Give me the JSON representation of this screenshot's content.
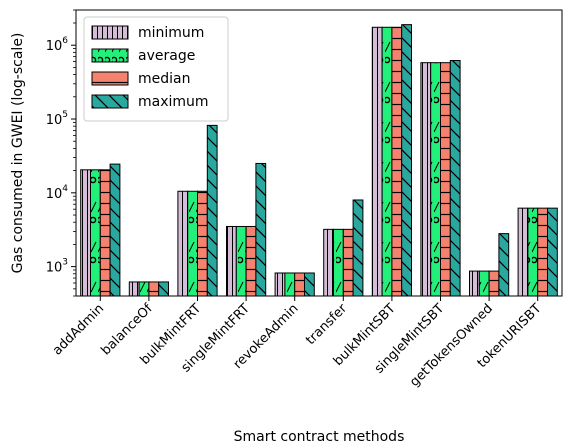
{
  "chart_data": {
    "type": "bar",
    "title": "",
    "xlabel": "Smart contract methods",
    "ylabel": "Gas consumed in GWEI (log-scale)",
    "yscale": "log",
    "ylim": [
      400,
      3000000
    ],
    "yticks": [
      1000,
      10000,
      100000,
      1000000
    ],
    "ytick_labels": [
      {
        "base": "10",
        "exp": "3"
      },
      {
        "base": "10",
        "exp": "4"
      },
      {
        "base": "10",
        "exp": "5"
      },
      {
        "base": "10",
        "exp": "6"
      }
    ],
    "categories": [
      "addAdmin",
      "balanceOf",
      "bulkMintFRT",
      "singleMintFRT",
      "revokeAdmin",
      "transfer",
      "bulkMintSBT",
      "singleMintSBT",
      "getTokensOwned",
      "tokenURISBT"
    ],
    "legend_position": "top-left",
    "grid": false,
    "series": [
      {
        "name": "minimum",
        "color": "#d5bdd8",
        "hatch": "vertical-lines",
        "values": [
          20500,
          620,
          10500,
          3500,
          820,
          3200,
          1750000,
          580000,
          870,
          6200
        ]
      },
      {
        "name": "average",
        "color": "#23f07a",
        "hatch": "circles",
        "values": [
          20500,
          620,
          10500,
          3500,
          820,
          3200,
          1750000,
          580000,
          870,
          6200
        ]
      },
      {
        "name": "median",
        "color": "#f5826e",
        "hatch": "horizontal-lines",
        "values": [
          20500,
          620,
          10500,
          3500,
          820,
          3200,
          1750000,
          580000,
          870,
          6200
        ]
      },
      {
        "name": "maximum",
        "color": "#2aa79e",
        "hatch": "diagonal-lines",
        "values": [
          24500,
          620,
          82000,
          25000,
          820,
          8000,
          1900000,
          620000,
          2800,
          6200
        ]
      }
    ]
  }
}
